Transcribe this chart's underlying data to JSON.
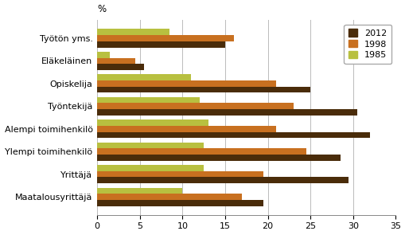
{
  "categories": [
    "Työtön yms.",
    "Eläkeläinen",
    "Opiskelija",
    "Työntekijä",
    "Alempi toimihenkilö",
    "Ylempi toimihenkilö",
    "Yrittäjä",
    "Maatalousyrittäjä"
  ],
  "series": {
    "2012": [
      15,
      5.5,
      25,
      30.5,
      32,
      28.5,
      29.5,
      19.5
    ],
    "1998": [
      16,
      4.5,
      21,
      23,
      21,
      24.5,
      19.5,
      17
    ],
    "1985": [
      8.5,
      1.5,
      11,
      12,
      13,
      12.5,
      12.5,
      10
    ]
  },
  "colors": {
    "2012": "#4a2c0a",
    "1998": "#c87020",
    "1985": "#b8c040"
  },
  "bar_height": 0.27,
  "xlim": [
    0,
    35
  ],
  "xticks": [
    0,
    5,
    10,
    15,
    20,
    25,
    30,
    35
  ],
  "ylabel_top": "%",
  "legend_labels": [
    "2012",
    "1998",
    "1985"
  ],
  "background_color": "#ffffff",
  "grid_color": "#bbbbbb"
}
